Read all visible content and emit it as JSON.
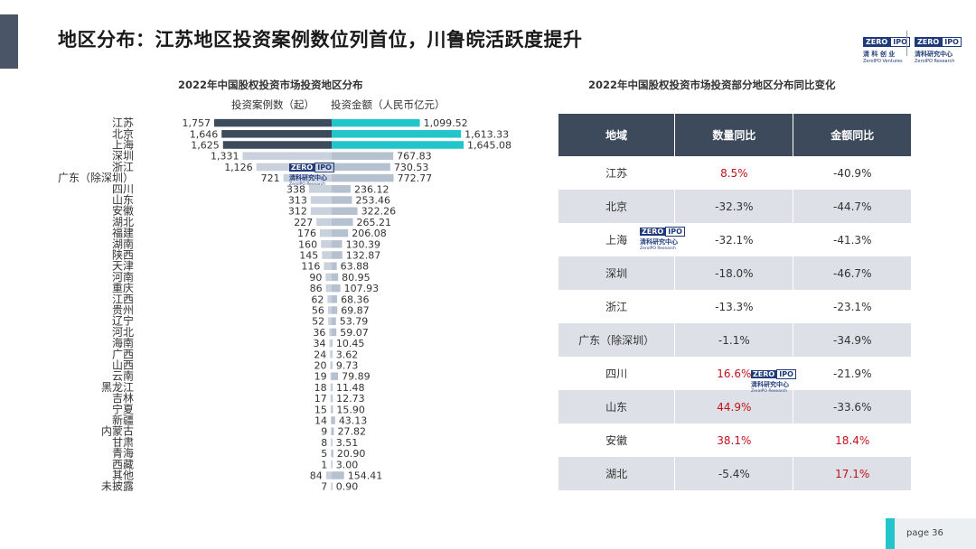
{
  "page": {
    "title": "地区分布：江苏地区投资案例数位列首位，川鲁皖活跃度提升",
    "page_label": "page  36"
  },
  "logos": {
    "a_zero": "ZERO",
    "a_ipo": "IPO",
    "a_cn": "清 科 创 业",
    "a_en": "ZeroIPO Ventures",
    "b_zero": "ZERO",
    "b_ipo": "IPO",
    "b_cn": "清科研究中心",
    "b_en": "ZeroIPO Research"
  },
  "watermark": {
    "zero": "ZERO",
    "ipo": "IPO",
    "cn": "清科研究中心",
    "en": "ZeroIPO Research"
  },
  "chart_data": {
    "type": "bar",
    "title": "2022年中国股权投资市场投资地区分布",
    "legend": [
      "投资案例数（起）",
      "投资金额（人民币亿元）"
    ],
    "colors": {
      "count_top": "#3d4a5c",
      "amount_top": "#22c5c9",
      "count_other": "#c9d1dd",
      "amount_other": "#b5c1cf"
    },
    "categories": [
      "江苏",
      "北京",
      "上海",
      "深圳",
      "浙江",
      "广东（除深圳）",
      "四川",
      "山东",
      "安徽",
      "湖北",
      "福建",
      "湖南",
      "陕西",
      "天津",
      "河南",
      "重庆",
      "江西",
      "贵州",
      "辽宁",
      "河北",
      "海南",
      "广西",
      "山西",
      "云南",
      "黑龙江",
      "吉林",
      "宁夏",
      "新疆",
      "内蒙古",
      "甘肃",
      "青海",
      "西藏",
      "其他",
      "未披露"
    ],
    "series": [
      {
        "name": "投资案例数（起）",
        "values": [
          1757,
          1646,
          1625,
          1331,
          1126,
          721,
          338,
          313,
          312,
          227,
          176,
          160,
          145,
          116,
          90,
          86,
          62,
          56,
          52,
          36,
          34,
          24,
          20,
          19,
          18,
          17,
          15,
          14,
          9,
          8,
          5,
          1,
          84,
          7
        ],
        "labels": [
          "1,757",
          "1,646",
          "1,625",
          "1,331",
          "1,126",
          "721",
          "338",
          "313",
          "312",
          "227",
          "176",
          "160",
          "145",
          "116",
          "90",
          "86",
          "62",
          "56",
          "52",
          "36",
          "34",
          "24",
          "20",
          "19",
          "18",
          "17",
          "15",
          "14",
          "9",
          "8",
          "5",
          "1",
          "84",
          "7"
        ]
      },
      {
        "name": "投资金额（人民币亿元）",
        "values": [
          1099.52,
          1613.33,
          1645.08,
          767.83,
          730.53,
          772.77,
          236.12,
          253.46,
          322.26,
          265.21,
          206.08,
          130.39,
          132.87,
          63.88,
          80.95,
          107.93,
          68.36,
          69.87,
          53.79,
          59.07,
          10.45,
          3.62,
          9.73,
          79.89,
          11.48,
          12.73,
          15.9,
          43.13,
          27.82,
          3.51,
          20.9,
          3.0,
          154.41,
          0.9
        ],
        "labels": [
          "1,099.52",
          "1,613.33",
          "1,645.08",
          "767.83",
          "730.53",
          "772.77",
          "236.12",
          "253.46",
          "322.26",
          "265.21",
          "206.08",
          "130.39",
          "132.87",
          "63.88",
          "80.95",
          "107.93",
          "68.36",
          "69.87",
          "53.79",
          "59.07",
          "10.45",
          "3.62",
          "9.73",
          "79.89",
          "11.48",
          "12.73",
          "15.90",
          "43.13",
          "27.82",
          "3.51",
          "20.90",
          "3.00",
          "154.41",
          "0.90"
        ]
      }
    ]
  },
  "table": {
    "title": "2022年中国股权投资市场投资部分地区分布同比变化",
    "headers": [
      "地域",
      "数量同比",
      "金额同比"
    ],
    "rows": [
      {
        "region": "江苏",
        "count": "8.5%",
        "amount": "-40.9%",
        "count_pos": true,
        "amount_pos": false
      },
      {
        "region": "北京",
        "count": "-32.3%",
        "amount": "-44.7%",
        "count_pos": false,
        "amount_pos": false
      },
      {
        "region": "上海",
        "count": "-32.1%",
        "amount": "-41.3%",
        "count_pos": false,
        "amount_pos": false
      },
      {
        "region": "深圳",
        "count": "-18.0%",
        "amount": "-46.7%",
        "count_pos": false,
        "amount_pos": false
      },
      {
        "region": "浙江",
        "count": "-13.3%",
        "amount": "-23.1%",
        "count_pos": false,
        "amount_pos": false
      },
      {
        "region": "广东（除深圳）",
        "count": "-1.1%",
        "amount": "-34.9%",
        "count_pos": false,
        "amount_pos": false
      },
      {
        "region": "四川",
        "count": "16.6%",
        "amount": "-21.9%",
        "count_pos": true,
        "amount_pos": false
      },
      {
        "region": "山东",
        "count": "44.9%",
        "amount": "-33.6%",
        "count_pos": true,
        "amount_pos": false
      },
      {
        "region": "安徽",
        "count": "38.1%",
        "amount": "18.4%",
        "count_pos": true,
        "amount_pos": true
      },
      {
        "region": "湖北",
        "count": "-5.4%",
        "amount": "17.1%",
        "count_pos": false,
        "amount_pos": true
      }
    ]
  }
}
